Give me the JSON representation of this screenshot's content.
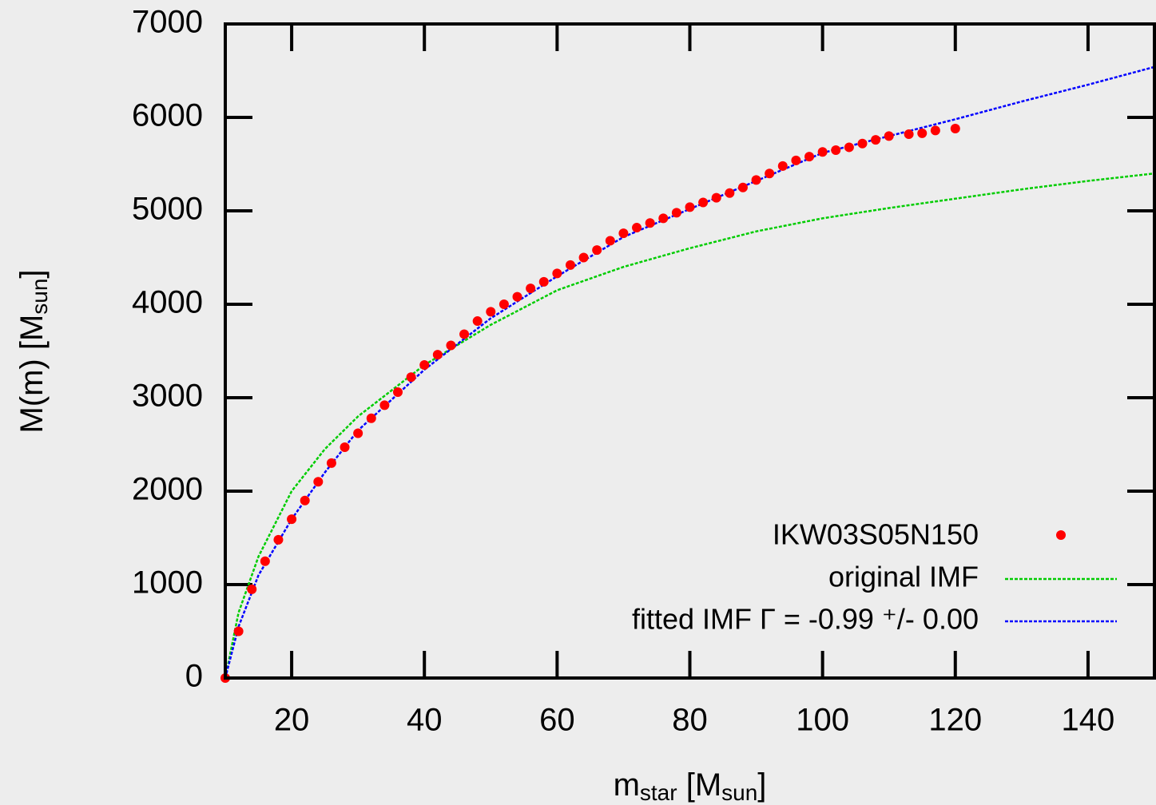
{
  "chart_data": {
    "type": "scatter",
    "xlabel_parts": [
      "m",
      "star",
      " [M",
      "sun",
      "]"
    ],
    "ylabel_parts": [
      "M(m) [M",
      "sun",
      "]"
    ],
    "xlim": [
      10,
      150
    ],
    "ylim": [
      0,
      7000
    ],
    "xticks": [
      20,
      40,
      60,
      80,
      100,
      120,
      140
    ],
    "yticks": [
      0,
      1000,
      2000,
      3000,
      4000,
      5000,
      6000,
      7000
    ],
    "legend": "bottom-right",
    "series": [
      {
        "name": "IKW03S05N150",
        "type": "scatter",
        "color": "#ff0000",
        "x": [
          10,
          12,
          14,
          16,
          18,
          20,
          22,
          24,
          26,
          28,
          30,
          32,
          34,
          36,
          38,
          40,
          42,
          44,
          46,
          48,
          50,
          52,
          54,
          56,
          58,
          60,
          62,
          64,
          66,
          68,
          70,
          72,
          74,
          76,
          78,
          80,
          82,
          84,
          86,
          88,
          90,
          92,
          94,
          96,
          98,
          100,
          102,
          104,
          106,
          108,
          110,
          113,
          115,
          117,
          120
        ],
        "values": [
          0,
          500,
          950,
          1250,
          1480,
          1700,
          1900,
          2100,
          2300,
          2470,
          2620,
          2780,
          2920,
          3060,
          3220,
          3350,
          3460,
          3560,
          3680,
          3820,
          3920,
          4000,
          4080,
          4170,
          4240,
          4330,
          4420,
          4500,
          4580,
          4680,
          4760,
          4820,
          4870,
          4920,
          4980,
          5040,
          5090,
          5140,
          5190,
          5250,
          5330,
          5400,
          5480,
          5540,
          5580,
          5630,
          5650,
          5680,
          5720,
          5760,
          5800,
          5820,
          5830,
          5860,
          5880
        ]
      },
      {
        "name": "original IMF",
        "type": "line",
        "color": "#00cc00",
        "x": [
          10,
          12,
          15,
          20,
          25,
          30,
          40,
          50,
          60,
          70,
          80,
          90,
          100,
          110,
          120,
          130,
          140,
          150
        ],
        "values": [
          0,
          700,
          1300,
          2000,
          2450,
          2800,
          3350,
          3780,
          4150,
          4400,
          4600,
          4780,
          4920,
          5030,
          5130,
          5230,
          5320,
          5400
        ]
      },
      {
        "name": "fitted IMF Γ = -0.99 ⁺/- 0.00",
        "type": "line",
        "color": "#0000ff",
        "x": [
          10,
          12,
          15,
          20,
          25,
          30,
          40,
          50,
          60,
          70,
          80,
          90,
          100,
          110,
          120,
          130,
          140,
          150
        ],
        "values": [
          0,
          550,
          1100,
          1700,
          2200,
          2650,
          3300,
          3850,
          4300,
          4720,
          5020,
          5320,
          5620,
          5800,
          5980,
          6170,
          6350,
          6540
        ]
      }
    ]
  }
}
